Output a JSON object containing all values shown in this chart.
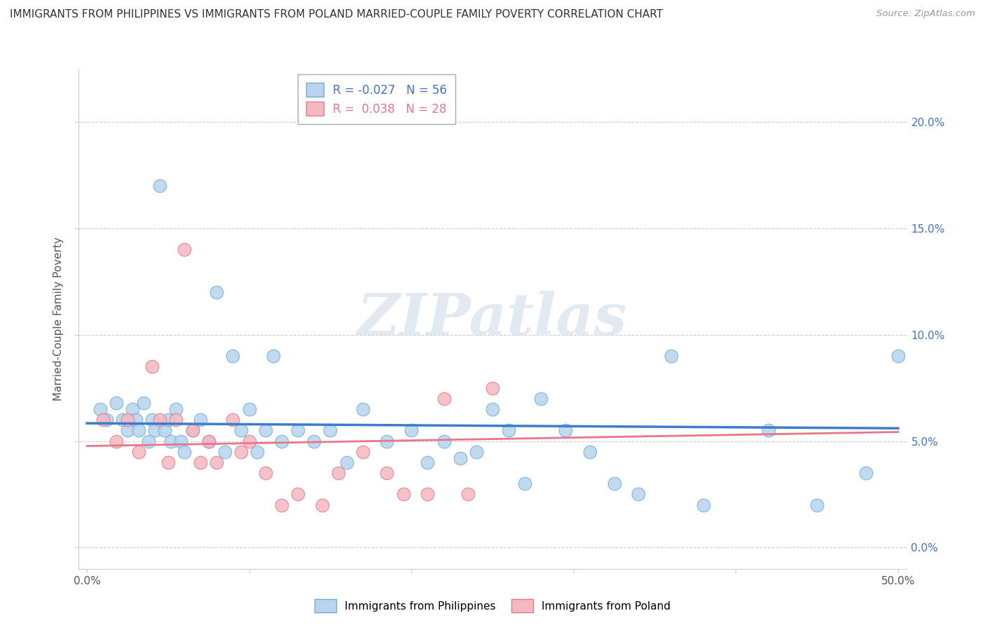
{
  "title": "IMMIGRANTS FROM PHILIPPINES VS IMMIGRANTS FROM POLAND MARRIED-COUPLE FAMILY POVERTY CORRELATION CHART",
  "source": "Source: ZipAtlas.com",
  "ylabel": "Married-Couple Family Poverty",
  "xlim": [
    -0.005,
    0.505
  ],
  "ylim": [
    -0.01,
    0.225
  ],
  "xticks": [
    0.0,
    0.1,
    0.2,
    0.3,
    0.4,
    0.5
  ],
  "xtick_labels_show": [
    "0.0%",
    "",
    "",
    "",
    "",
    "50.0%"
  ],
  "yticks": [
    0.0,
    0.05,
    0.1,
    0.15,
    0.2
  ],
  "ytick_labels": [
    "0.0%",
    "5.0%",
    "10.0%",
    "15.0%",
    "20.0%"
  ],
  "philippines_color": "#b8d4ee",
  "philippines_edge": "#6aaed6",
  "poland_color": "#f4b8c1",
  "poland_edge": "#e8768a",
  "philippines_line_color": "#3a7dc9",
  "poland_line_color": "#e8768a",
  "R_philippines": -0.027,
  "N_philippines": 56,
  "R_poland": 0.038,
  "N_poland": 28,
  "watermark_text": "ZIPatlas",
  "philippines_x": [
    0.008,
    0.012,
    0.018,
    0.022,
    0.025,
    0.028,
    0.03,
    0.032,
    0.035,
    0.038,
    0.04,
    0.042,
    0.045,
    0.048,
    0.05,
    0.052,
    0.055,
    0.058,
    0.06,
    0.065,
    0.07,
    0.075,
    0.08,
    0.085,
    0.09,
    0.095,
    0.1,
    0.105,
    0.11,
    0.115,
    0.12,
    0.13,
    0.14,
    0.15,
    0.16,
    0.17,
    0.185,
    0.2,
    0.21,
    0.22,
    0.23,
    0.24,
    0.25,
    0.26,
    0.27,
    0.28,
    0.295,
    0.31,
    0.325,
    0.34,
    0.36,
    0.38,
    0.42,
    0.45,
    0.48,
    0.5
  ],
  "philippines_y": [
    0.065,
    0.06,
    0.068,
    0.06,
    0.055,
    0.065,
    0.06,
    0.055,
    0.068,
    0.05,
    0.06,
    0.055,
    0.17,
    0.055,
    0.06,
    0.05,
    0.065,
    0.05,
    0.045,
    0.055,
    0.06,
    0.05,
    0.12,
    0.045,
    0.09,
    0.055,
    0.065,
    0.045,
    0.055,
    0.09,
    0.05,
    0.055,
    0.05,
    0.055,
    0.04,
    0.065,
    0.05,
    0.055,
    0.04,
    0.05,
    0.042,
    0.045,
    0.065,
    0.055,
    0.03,
    0.07,
    0.055,
    0.045,
    0.03,
    0.025,
    0.09,
    0.02,
    0.055,
    0.02,
    0.035,
    0.09
  ],
  "poland_x": [
    0.01,
    0.018,
    0.025,
    0.032,
    0.04,
    0.045,
    0.05,
    0.055,
    0.06,
    0.065,
    0.07,
    0.075,
    0.08,
    0.09,
    0.095,
    0.1,
    0.11,
    0.12,
    0.13,
    0.145,
    0.155,
    0.17,
    0.185,
    0.195,
    0.21,
    0.22,
    0.235,
    0.25
  ],
  "poland_y": [
    0.06,
    0.05,
    0.06,
    0.045,
    0.085,
    0.06,
    0.04,
    0.06,
    0.14,
    0.055,
    0.04,
    0.05,
    0.04,
    0.06,
    0.045,
    0.05,
    0.035,
    0.02,
    0.025,
    0.02,
    0.035,
    0.045,
    0.035,
    0.025,
    0.025,
    0.07,
    0.025,
    0.075
  ]
}
